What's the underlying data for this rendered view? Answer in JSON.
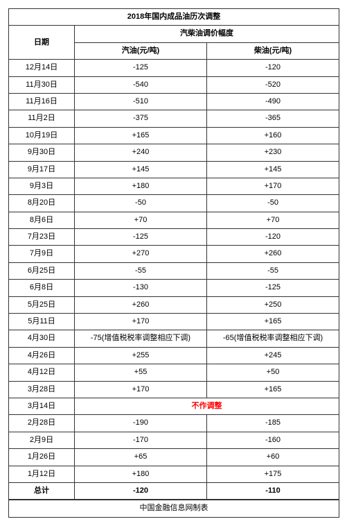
{
  "title": "2018年国内成品油历次调整",
  "headers": {
    "date": "日期",
    "group": "汽柴油调价幅度",
    "gasoline": "汽油(元/吨)",
    "diesel": "柴油(元/吨)"
  },
  "rows": [
    {
      "date": "12月14日",
      "gasoline": "-125",
      "diesel": "-120"
    },
    {
      "date": "11月30日",
      "gasoline": "-540",
      "diesel": "-520"
    },
    {
      "date": "11月16日",
      "gasoline": "-510",
      "diesel": "-490"
    },
    {
      "date": "11月2日",
      "gasoline": "-375",
      "diesel": "-365"
    },
    {
      "date": "10月19日",
      "gasoline": "+165",
      "diesel": "+160"
    },
    {
      "date": "9月30日",
      "gasoline": "+240",
      "diesel": "+230"
    },
    {
      "date": "9月17日",
      "gasoline": "+145",
      "diesel": "+145"
    },
    {
      "date": "9月3日",
      "gasoline": "+180",
      "diesel": "+170"
    },
    {
      "date": "8月20日",
      "gasoline": "-50",
      "diesel": "-50"
    },
    {
      "date": "8月6日",
      "gasoline": "+70",
      "diesel": "+70"
    },
    {
      "date": "7月23日",
      "gasoline": "-125",
      "diesel": "-120"
    },
    {
      "date": "7月9日",
      "gasoline": "+270",
      "diesel": "+260"
    },
    {
      "date": "6月25日",
      "gasoline": "-55",
      "diesel": "-55"
    },
    {
      "date": "6月8日",
      "gasoline": "-130",
      "diesel": "-125"
    },
    {
      "date": "5月25日",
      "gasoline": "+260",
      "diesel": "+250"
    },
    {
      "date": "5月11日",
      "gasoline": "+170",
      "diesel": "+165"
    },
    {
      "date": "4月30日",
      "gasoline": "-75(增值税税率调整相应下调)",
      "diesel": "-65(增值税税率调整相应下调)"
    },
    {
      "date": "4月26日",
      "gasoline": "+255",
      "diesel": "+245"
    },
    {
      "date": "4月12日",
      "gasoline": "+55",
      "diesel": "+50"
    },
    {
      "date": "3月28日",
      "gasoline": "+170",
      "diesel": "+165"
    },
    {
      "date": "3月14日",
      "no_adjust": "不作调整"
    },
    {
      "date": "2月28日",
      "gasoline": "-190",
      "diesel": "-185"
    },
    {
      "date": "2月9日",
      "gasoline": "-170",
      "diesel": "-160"
    },
    {
      "date": "1月26日",
      "gasoline": "+65",
      "diesel": "+60"
    },
    {
      "date": "1月12日",
      "gasoline": "+180",
      "diesel": "+175"
    }
  ],
  "total": {
    "label": "总计",
    "gasoline": "-120",
    "diesel": "-110"
  },
  "footer": "中国金融信息网制表"
}
